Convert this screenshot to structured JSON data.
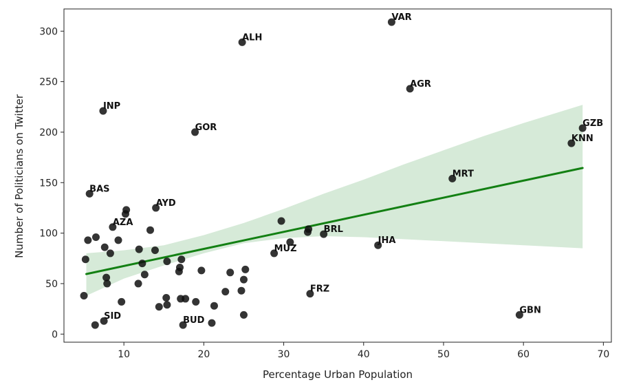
{
  "chart_data": {
    "type": "scatter",
    "title": "",
    "xlabel": "Percentage Urban Population",
    "ylabel": "Number of Politicians on Twitter",
    "xlim": [
      2.5,
      71
    ],
    "ylim": [
      -8,
      322
    ],
    "xticks": [
      10,
      20,
      30,
      40,
      50,
      60,
      70
    ],
    "yticks": [
      0,
      50,
      100,
      150,
      200,
      250,
      300
    ],
    "grid": false,
    "legend": "none",
    "colors": {
      "point": "#111111",
      "regression_line": "#138013",
      "confidence_band": "#d6ead8",
      "axes": "#222222"
    },
    "regression": {
      "x": [
        5.3,
        67.4
      ],
      "y": [
        59.5,
        164.5
      ],
      "band_upper": [
        [
          5.3,
          80
        ],
        [
          10,
          83
        ],
        [
          15,
          88
        ],
        [
          20,
          98
        ],
        [
          25,
          110
        ],
        [
          30,
          124
        ],
        [
          35,
          139
        ],
        [
          40,
          153
        ],
        [
          45,
          168
        ],
        [
          50,
          182
        ],
        [
          55,
          196
        ],
        [
          60,
          209
        ],
        [
          67.4,
          227
        ]
      ],
      "band_lower": [
        [
          5.3,
          38
        ],
        [
          10,
          55
        ],
        [
          15,
          68
        ],
        [
          20,
          80
        ],
        [
          25,
          90
        ],
        [
          30,
          95
        ],
        [
          35,
          97
        ],
        [
          40,
          96
        ],
        [
          45,
          94
        ],
        [
          50,
          92
        ],
        [
          55,
          90
        ],
        [
          60,
          88
        ],
        [
          67.4,
          85
        ]
      ]
    },
    "labeled_points": [
      {
        "label": "VAR",
        "x": 43.5,
        "y": 309
      },
      {
        "label": "ALH",
        "x": 24.8,
        "y": 289
      },
      {
        "label": "AGR",
        "x": 45.8,
        "y": 243
      },
      {
        "label": "INP",
        "x": 7.4,
        "y": 221
      },
      {
        "label": "GOR",
        "x": 18.9,
        "y": 200
      },
      {
        "label": "GZB",
        "x": 67.4,
        "y": 204
      },
      {
        "label": "KNN",
        "x": 66.0,
        "y": 189
      },
      {
        "label": "MRT",
        "x": 51.1,
        "y": 154
      },
      {
        "label": "BAS",
        "x": 5.7,
        "y": 139
      },
      {
        "label": "AYD",
        "x": 14.0,
        "y": 125
      },
      {
        "label": "AZA",
        "x": 8.6,
        "y": 106
      },
      {
        "label": "BRL",
        "x": 35.0,
        "y": 99
      },
      {
        "label": "JHA",
        "x": 41.8,
        "y": 88
      },
      {
        "label": "MUZ",
        "x": 28.8,
        "y": 80
      },
      {
        "label": "FRZ",
        "x": 33.3,
        "y": 40
      },
      {
        "label": "GBN",
        "x": 59.5,
        "y": 19
      },
      {
        "label": "SID",
        "x": 7.5,
        "y": 13
      },
      {
        "label": "BUD",
        "x": 17.4,
        "y": 9
      }
    ],
    "points": [
      {
        "x": 5.2,
        "y": 74
      },
      {
        "x": 5.5,
        "y": 93
      },
      {
        "x": 6.5,
        "y": 96
      },
      {
        "x": 5.0,
        "y": 38
      },
      {
        "x": 6.4,
        "y": 9
      },
      {
        "x": 7.6,
        "y": 86
      },
      {
        "x": 8.3,
        "y": 80
      },
      {
        "x": 7.8,
        "y": 56
      },
      {
        "x": 7.9,
        "y": 50
      },
      {
        "x": 9.3,
        "y": 93
      },
      {
        "x": 9.7,
        "y": 32
      },
      {
        "x": 10.3,
        "y": 123
      },
      {
        "x": 10.2,
        "y": 119
      },
      {
        "x": 11.8,
        "y": 50
      },
      {
        "x": 11.9,
        "y": 84
      },
      {
        "x": 12.3,
        "y": 70
      },
      {
        "x": 12.6,
        "y": 59
      },
      {
        "x": 13.3,
        "y": 103
      },
      {
        "x": 13.9,
        "y": 83
      },
      {
        "x": 14.4,
        "y": 27
      },
      {
        "x": 15.3,
        "y": 36
      },
      {
        "x": 15.4,
        "y": 72
      },
      {
        "x": 15.4,
        "y": 29
      },
      {
        "x": 16.9,
        "y": 62
      },
      {
        "x": 17.0,
        "y": 66
      },
      {
        "x": 17.2,
        "y": 74
      },
      {
        "x": 17.1,
        "y": 35
      },
      {
        "x": 17.7,
        "y": 35
      },
      {
        "x": 19.0,
        "y": 32
      },
      {
        "x": 19.7,
        "y": 63
      },
      {
        "x": 21.0,
        "y": 11
      },
      {
        "x": 21.3,
        "y": 28
      },
      {
        "x": 22.7,
        "y": 42
      },
      {
        "x": 23.3,
        "y": 61
      },
      {
        "x": 24.7,
        "y": 43
      },
      {
        "x": 25.0,
        "y": 54
      },
      {
        "x": 25.2,
        "y": 64
      },
      {
        "x": 25.0,
        "y": 19
      },
      {
        "x": 29.7,
        "y": 112
      },
      {
        "x": 30.8,
        "y": 91
      },
      {
        "x": 33.0,
        "y": 101
      },
      {
        "x": 33.1,
        "y": 104
      }
    ]
  }
}
